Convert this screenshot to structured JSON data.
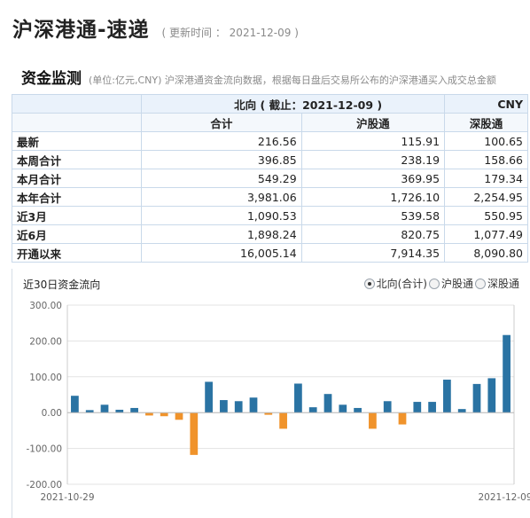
{
  "header": {
    "title": "沪深港通-速递",
    "update_time": "( 更新时间 ： 2021-12-09 )"
  },
  "section": {
    "title": "资金监测",
    "description": "(单位:亿元,CNY)  沪深港通资金流向数据，根据每日盘后交易所公布的沪深港通买入成交总金额"
  },
  "table": {
    "header_title": "北向 ( 截止：2021-12-09 )",
    "currency": "CNY",
    "columns": [
      "",
      "合计",
      "沪股通",
      "深股通"
    ],
    "rows": [
      {
        "label": "最新",
        "values": [
          "216.56",
          "115.91",
          "100.65"
        ]
      },
      {
        "label": "本周合计",
        "values": [
          "396.85",
          "238.19",
          "158.66"
        ]
      },
      {
        "label": "本月合计",
        "values": [
          "549.29",
          "369.95",
          "179.34"
        ]
      },
      {
        "label": "本年合计",
        "values": [
          "3,981.06",
          "1,726.10",
          "2,254.95"
        ]
      },
      {
        "label": "近3月",
        "values": [
          "1,090.53",
          "539.58",
          "550.95"
        ]
      },
      {
        "label": "近6月",
        "values": [
          "1,898.24",
          "820.75",
          "1,077.49"
        ]
      },
      {
        "label": "开通以来",
        "values": [
          "16,005.14",
          "7,914.35",
          "8,090.80"
        ]
      }
    ]
  },
  "chart": {
    "title": "近30日资金流向",
    "options": [
      {
        "label": "北向(合计)",
        "selected": true
      },
      {
        "label": "沪股通",
        "selected": false
      },
      {
        "label": "深股通",
        "selected": false
      }
    ]
  },
  "chart_data": {
    "type": "bar",
    "title": "近30日资金流向",
    "x_start_label": "2021-10-29",
    "x_end_label": "2021-12-09",
    "ylim": [
      -200,
      300
    ],
    "yticks": [
      "300.00",
      "200.00",
      "100.00",
      "0.00",
      "-100.00",
      "-200.00"
    ],
    "grid": true,
    "positive_color": "#2a73a3",
    "negative_color": "#f0932b",
    "values": [
      47,
      7,
      22,
      8,
      13,
      -8,
      -10,
      -20,
      -118,
      86,
      35,
      32,
      42,
      -6,
      -45,
      81,
      15,
      52,
      22,
      13,
      -45,
      32,
      -33,
      30,
      30,
      92,
      10,
      80,
      96,
      216.56
    ]
  }
}
